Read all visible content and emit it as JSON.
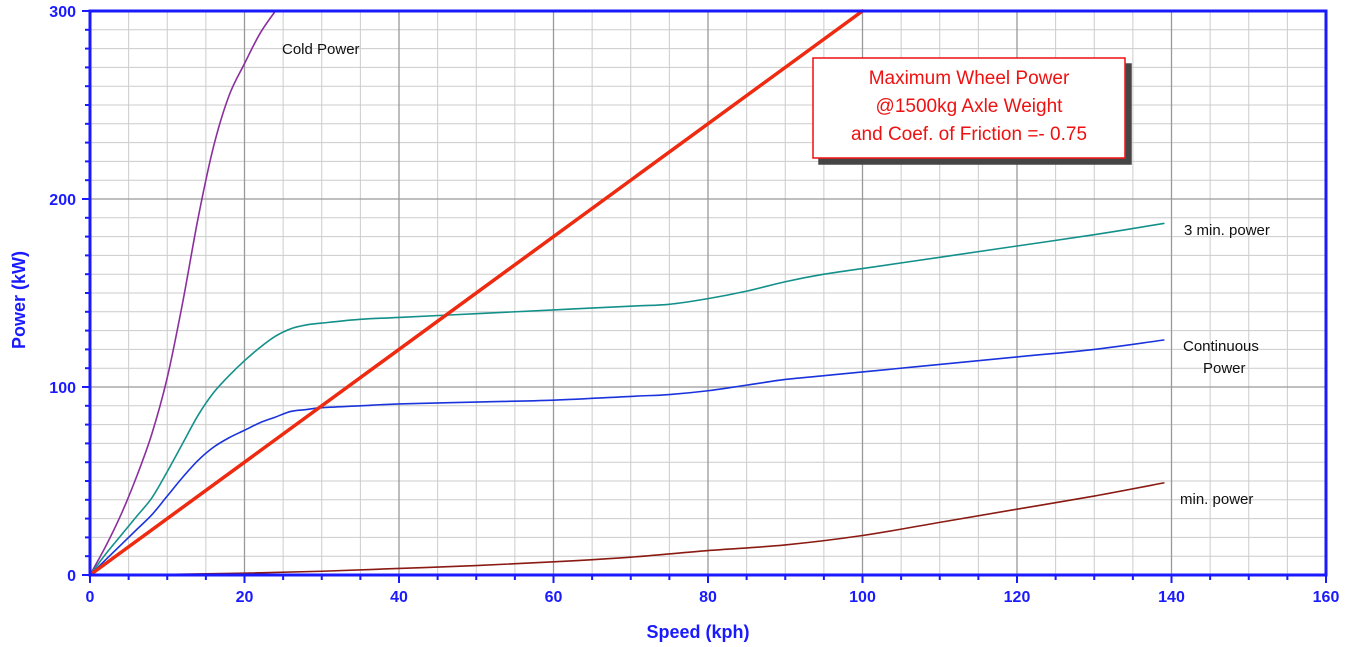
{
  "chart_data": {
    "type": "line",
    "title": "",
    "xlabel": "Speed  (kph)",
    "ylabel": "Power  (kW)",
    "xlim": [
      0,
      160
    ],
    "ylim": [
      0,
      300
    ],
    "x_ticks": [
      0,
      20,
      40,
      60,
      80,
      100,
      120,
      140,
      160
    ],
    "y_ticks": [
      0,
      100,
      200,
      300
    ],
    "grid": true,
    "series": [
      {
        "name": "Cold Power",
        "color": "#8b2f9e",
        "x": [
          0,
          2,
          4,
          6,
          8,
          10,
          12,
          14,
          16,
          18,
          20,
          22,
          24
        ],
        "y": [
          0,
          15,
          32,
          52,
          75,
          105,
          145,
          190,
          228,
          255,
          272,
          288,
          300
        ]
      },
      {
        "name": "3 min. power",
        "color": "#13908a",
        "x": [
          0,
          2,
          4,
          6,
          8,
          10,
          12,
          14,
          16,
          18,
          20,
          22,
          24,
          26,
          28,
          30,
          35,
          40,
          50,
          60,
          70,
          75,
          80,
          85,
          90,
          95,
          100,
          110,
          120,
          130,
          139
        ],
        "y": [
          0,
          11,
          21,
          31,
          41,
          55,
          70,
          85,
          97,
          106,
          114,
          121,
          127,
          131,
          133,
          134,
          136,
          137,
          139,
          141,
          143,
          144,
          147,
          151,
          156,
          160,
          163,
          169,
          175,
          181,
          187
        ]
      },
      {
        "name": "Continuous Power",
        "color": "#1a33dd",
        "x": [
          0,
          2,
          4,
          6,
          8,
          10,
          12,
          14,
          16,
          18,
          20,
          22,
          24,
          26,
          28,
          30,
          35,
          40,
          50,
          60,
          70,
          75,
          80,
          85,
          90,
          95,
          100,
          110,
          120,
          130,
          139
        ],
        "y": [
          0,
          8,
          16,
          24,
          32,
          42,
          52,
          61,
          68,
          73,
          77,
          81,
          84,
          87,
          88,
          89,
          90,
          91,
          92,
          93,
          95,
          96,
          98,
          101,
          104,
          106,
          108,
          112,
          116,
          120,
          125
        ]
      },
      {
        "name": "min. power",
        "color": "#8a1a12",
        "x": [
          0,
          10,
          20,
          30,
          40,
          50,
          60,
          70,
          80,
          90,
          100,
          110,
          120,
          130,
          139
        ],
        "y": [
          0,
          0.3,
          1,
          2,
          3.5,
          5,
          7,
          9.5,
          13,
          16,
          21,
          28,
          35,
          42,
          49
        ]
      },
      {
        "name": "Maximum Wheel Power",
        "color": "#ee2a10",
        "x": [
          0,
          100
        ],
        "y": [
          0,
          300
        ]
      }
    ],
    "series_labels": {
      "cold": "Cold Power",
      "three_min": "3 min. power",
      "continuous_1": "Continuous",
      "continuous_2": "Power",
      "min": "min. power"
    },
    "annotation": {
      "lines": [
        "Maximum Wheel Power",
        "@1500kg Axle Weight",
        "and Coef. of Friction =- 0.75"
      ],
      "text_color": "#ee1111",
      "border_color": "#ee1111"
    },
    "colors": {
      "axis": "#1a1aff",
      "grid_major": "#999999",
      "grid_minor": "#cccccc"
    }
  }
}
